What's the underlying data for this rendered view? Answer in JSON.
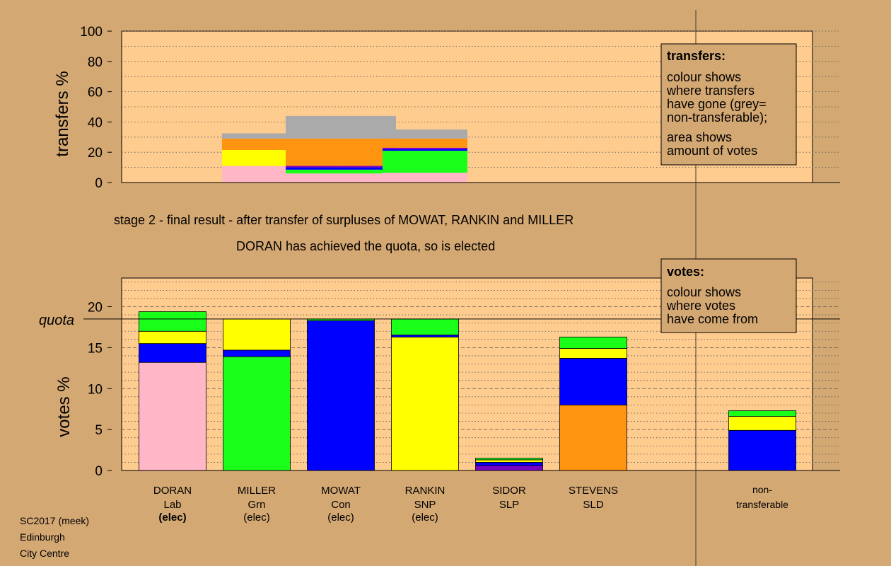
{
  "colors": {
    "background": "#d4a873",
    "plot_bg": "#ffcc8f",
    "doran_lab": "#ffb6c6",
    "miller_grn": "#1aff1a",
    "mowat_con": "#0000ff",
    "rankin_snp": "#ffff00",
    "sidor_slp": "#7b00c8",
    "stevens_sld": "#ff9410",
    "non_transferable": "#aaaaaa",
    "legend_bg": "#d4a873"
  },
  "titles": {
    "stage": "stage 2 - final result - after transfer of surpluses of MOWAT, RANKIN and MILLER",
    "result": "DORAN has achieved the quota, so is elected"
  },
  "footer": [
    "SC2017 (meek)",
    "Edinburgh",
    "City Centre"
  ],
  "chart_data": [
    {
      "type": "bar",
      "name_key": "transfers",
      "ylabel": "transfers %",
      "ylim": [
        0,
        100
      ],
      "yticks": [
        0,
        20,
        40,
        60,
        80,
        100
      ],
      "legend": {
        "title": "transfers:",
        "lines": [
          "colour shows",
          "where transfers",
          "have gone (grey=",
          "non-transferable);"
        ],
        "lines2": [
          "area shows",
          "amount of votes"
        ]
      },
      "series": [
        {
          "from": "MOWAT",
          "segments": [
            {
              "party": "doran_lab",
              "value": 11
            },
            {
              "party": "rankin_snp",
              "value": 10.5
            },
            {
              "party": "stevens_sld",
              "value": 7.5
            },
            {
              "party": "non_transferable",
              "value": 3.5
            }
          ]
        },
        {
          "from": "RANKIN",
          "segments": [
            {
              "party": "doran_lab",
              "value": 6
            },
            {
              "party": "miller_grn",
              "value": 2.5
            },
            {
              "party": "mowat_con",
              "value": 1.5
            },
            {
              "party": "sidor_slp",
              "value": 1
            },
            {
              "party": "stevens_sld",
              "value": 18
            },
            {
              "party": "non_transferable",
              "value": 15
            }
          ]
        },
        {
          "from": "MILLER",
          "segments": [
            {
              "party": "doran_lab",
              "value": 6.5
            },
            {
              "party": "miller_grn",
              "value": 14.5
            },
            {
              "party": "mowat_con",
              "value": 1
            },
            {
              "party": "sidor_slp",
              "value": 1
            },
            {
              "party": "stevens_sld",
              "value": 6
            },
            {
              "party": "non_transferable",
              "value": 6
            }
          ]
        }
      ]
    },
    {
      "type": "bar",
      "name_key": "votes",
      "ylabel": "votes %",
      "ylim": [
        0,
        23.5
      ],
      "yticks": [
        0,
        5,
        10,
        15,
        20
      ],
      "quota": 18.5,
      "quota_label": "quota",
      "legend": {
        "title": "votes:",
        "lines": [
          "colour shows",
          "where votes",
          "have come from"
        ]
      },
      "candidates": [
        {
          "name": "DORAN",
          "party": "Lab",
          "status": "(elec)",
          "status_bold": true,
          "segments": [
            {
              "party": "doran_lab",
              "value": 13.2
            },
            {
              "party": "mowat_con",
              "value": 2.3
            },
            {
              "party": "rankin_snp",
              "value": 1.5
            },
            {
              "party": "miller_grn",
              "value": 2.4
            }
          ]
        },
        {
          "name": "MILLER",
          "party": "Grn",
          "status": "(elec)",
          "status_bold": false,
          "segments": [
            {
              "party": "miller_grn",
              "value": 13.9
            },
            {
              "party": "mowat_con",
              "value": 0.8
            },
            {
              "party": "rankin_snp",
              "value": 3.8
            }
          ]
        },
        {
          "name": "MOWAT",
          "party": "Con",
          "status": "(elec)",
          "status_bold": false,
          "segments": [
            {
              "party": "mowat_con",
              "value": 18.3
            },
            {
              "party": "miller_grn",
              "value": 0.2
            }
          ]
        },
        {
          "name": "RANKIN",
          "party": "SNP",
          "status": "(elec)",
          "status_bold": false,
          "segments": [
            {
              "party": "rankin_snp",
              "value": 16.3
            },
            {
              "party": "mowat_con",
              "value": 0.25
            },
            {
              "party": "miller_grn",
              "value": 1.95
            }
          ]
        },
        {
          "name": "SIDOR",
          "party": "SLP",
          "status": "",
          "status_bold": false,
          "segments": [
            {
              "party": "sidor_slp",
              "value": 0.6
            },
            {
              "party": "mowat_con",
              "value": 0.4
            },
            {
              "party": "rankin_snp",
              "value": 0.3
            },
            {
              "party": "miller_grn",
              "value": 0.2
            }
          ]
        },
        {
          "name": "STEVENS",
          "party": "SLD",
          "status": "",
          "status_bold": false,
          "segments": [
            {
              "party": "stevens_sld",
              "value": 8
            },
            {
              "party": "mowat_con",
              "value": 5.7
            },
            {
              "party": "rankin_snp",
              "value": 1.2
            },
            {
              "party": "miller_grn",
              "value": 1.4
            }
          ]
        }
      ],
      "non_transferable": {
        "name": "non-",
        "name2": "transferable",
        "segments": [
          {
            "party": "mowat_con",
            "value": 4.9
          },
          {
            "party": "rankin_snp",
            "value": 1.7
          },
          {
            "party": "miller_grn",
            "value": 0.7
          }
        ]
      }
    }
  ]
}
